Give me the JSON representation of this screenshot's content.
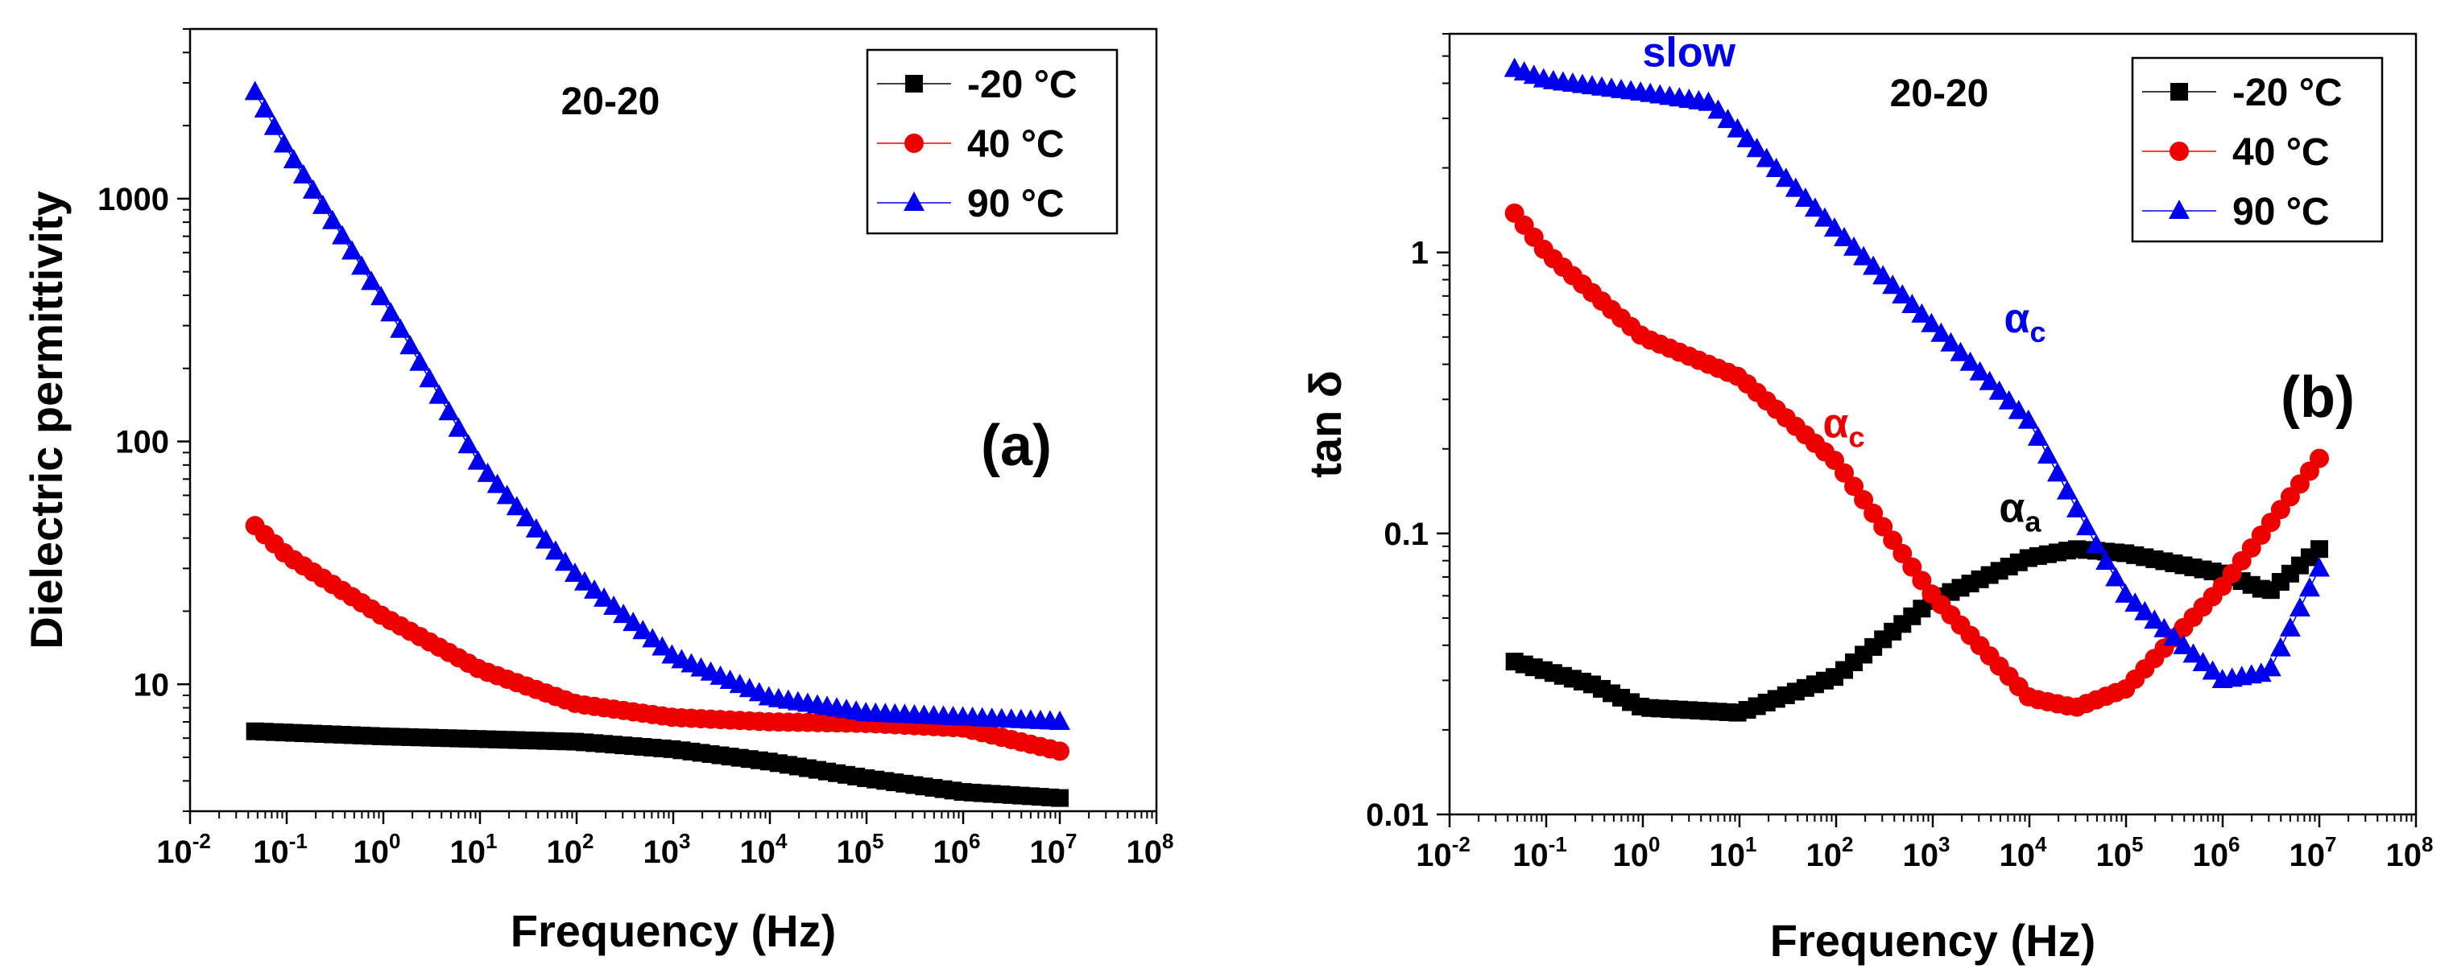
{
  "chart_data": [
    {
      "type": "scatter",
      "panel": "a",
      "panel_label": "(a)",
      "title": "20-20",
      "xlabel": "Frequency (Hz)",
      "ylabel": "Dielectric permittivity",
      "xscale": "log",
      "yscale": "log",
      "xlim": [
        0.01,
        100000000
      ],
      "ylim": [
        3,
        5000
      ],
      "xtick_labels": [
        {
          "exp": "-2",
          "value": 0.01
        },
        {
          "exp": "-1",
          "value": 0.1
        },
        {
          "exp": "0",
          "value": 1
        },
        {
          "exp": "1",
          "value": 10
        },
        {
          "exp": "2",
          "value": 100
        },
        {
          "exp": "3",
          "value": 1000
        },
        {
          "exp": "4",
          "value": 10000
        },
        {
          "exp": "5",
          "value": 100000
        },
        {
          "exp": "6",
          "value": 1000000
        },
        {
          "exp": "7",
          "value": 10000000
        },
        {
          "exp": "8",
          "value": 100000000
        }
      ],
      "xtick_base": "10",
      "ytick_labels": [
        {
          "label": "10",
          "value": 10
        },
        {
          "label": "100",
          "value": 100
        },
        {
          "label": "1000",
          "value": 1000
        }
      ],
      "legend_position": "top-right",
      "series": [
        {
          "name": "-20 °C",
          "color": "#000000",
          "marker": "square",
          "anchors": [
            [
              0.047,
              6.4
            ],
            [
              1,
              6.1
            ],
            [
              100,
              5.8
            ],
            [
              1000,
              5.4
            ],
            [
              10000,
              4.8
            ],
            [
              100000,
              4.1
            ],
            [
              1000000,
              3.6
            ],
            [
              10000000,
              3.4
            ]
          ]
        },
        {
          "name": "40 °C",
          "color": "#ee0000",
          "marker": "circle",
          "anchors": [
            [
              0.047,
              45
            ],
            [
              0.1,
              34
            ],
            [
              1,
              19
            ],
            [
              10,
              11.5
            ],
            [
              100,
              8.3
            ],
            [
              1000,
              7.3
            ],
            [
              10000,
              7.0
            ],
            [
              100000,
              6.9
            ],
            [
              1000000,
              6.6
            ],
            [
              10000000,
              5.3
            ]
          ]
        },
        {
          "name": "90 °C",
          "color": "#0000ee",
          "marker": "triangle",
          "anchors": [
            [
              0.047,
              2750
            ],
            [
              0.1,
              1600
            ],
            [
              1,
              380
            ],
            [
              10,
              80
            ],
            [
              100,
              28
            ],
            [
              1000,
              13
            ],
            [
              10000,
              8.8
            ],
            [
              100000,
              7.6
            ],
            [
              1000000,
              7.3
            ],
            [
              10000000,
              7.0
            ]
          ]
        }
      ]
    },
    {
      "type": "scatter",
      "panel": "b",
      "panel_label": "(b)",
      "title": "20-20",
      "xlabel": "Frequency (Hz)",
      "ylabel": "tan δ",
      "xscale": "log",
      "yscale": "log",
      "xlim": [
        0.01,
        100000000
      ],
      "ylim": [
        0.01,
        6
      ],
      "xtick_labels": [
        {
          "exp": "-2",
          "value": 0.01
        },
        {
          "exp": "-1",
          "value": 0.1
        },
        {
          "exp": "0",
          "value": 1
        },
        {
          "exp": "1",
          "value": 10
        },
        {
          "exp": "2",
          "value": 100
        },
        {
          "exp": "3",
          "value": 1000
        },
        {
          "exp": "4",
          "value": 10000
        },
        {
          "exp": "5",
          "value": 100000
        },
        {
          "exp": "6",
          "value": 1000000
        },
        {
          "exp": "7",
          "value": 10000000
        },
        {
          "exp": "8",
          "value": 100000000
        }
      ],
      "xtick_base": "10",
      "ytick_labels": [
        {
          "label": "0.01",
          "value": 0.01
        },
        {
          "label": "0.1",
          "value": 0.1
        },
        {
          "label": "1",
          "value": 1
        }
      ],
      "legend_position": "top-right",
      "annotations": [
        {
          "text": "slow",
          "sub": "",
          "color": "#0000ee",
          "x": 3,
          "y": 4.6
        },
        {
          "text": "α",
          "sub": "c",
          "color": "#0000ee",
          "x": 9000,
          "y": 0.52
        },
        {
          "text": "α",
          "sub": "c",
          "color": "#ee0000",
          "x": 120,
          "y": 0.22
        },
        {
          "text": "α",
          "sub": "a",
          "color": "#000000",
          "x": 8000,
          "y": 0.11
        }
      ],
      "series": [
        {
          "name": "-20 °C",
          "color": "#000000",
          "marker": "square",
          "anchors": [
            [
              0.047,
              0.035
            ],
            [
              0.3,
              0.029
            ],
            [
              1,
              0.024
            ],
            [
              10,
              0.023
            ],
            [
              100,
              0.031
            ],
            [
              1000,
              0.058
            ],
            [
              10000,
              0.082
            ],
            [
              30000,
              0.088
            ],
            [
              100000,
              0.085
            ],
            [
              1000000,
              0.072
            ],
            [
              3000000,
              0.062
            ],
            [
              10000000,
              0.088
            ]
          ]
        },
        {
          "name": "40 °C",
          "color": "#ee0000",
          "marker": "circle",
          "anchors": [
            [
              0.047,
              1.38
            ],
            [
              0.1,
              1.0
            ],
            [
              1,
              0.5
            ],
            [
              10,
              0.36
            ],
            [
              100,
              0.18
            ],
            [
              1000,
              0.06
            ],
            [
              10000,
              0.026
            ],
            [
              30000,
              0.024
            ],
            [
              100000,
              0.028
            ],
            [
              1000000,
              0.065
            ],
            [
              10000000,
              0.185
            ]
          ]
        },
        {
          "name": "90 °C",
          "color": "#0000ee",
          "marker": "triangle",
          "anchors": [
            [
              0.047,
              4.5
            ],
            [
              0.1,
              4.1
            ],
            [
              1,
              3.7
            ],
            [
              5,
              3.4
            ],
            [
              10,
              2.7
            ],
            [
              100,
              1.2
            ],
            [
              1000,
              0.55
            ],
            [
              10000,
              0.25
            ],
            [
              50000,
              0.09
            ],
            [
              100000,
              0.06
            ],
            [
              1000000,
              0.03
            ],
            [
              3000000,
              0.032
            ],
            [
              10000000,
              0.075
            ]
          ]
        }
      ]
    }
  ]
}
